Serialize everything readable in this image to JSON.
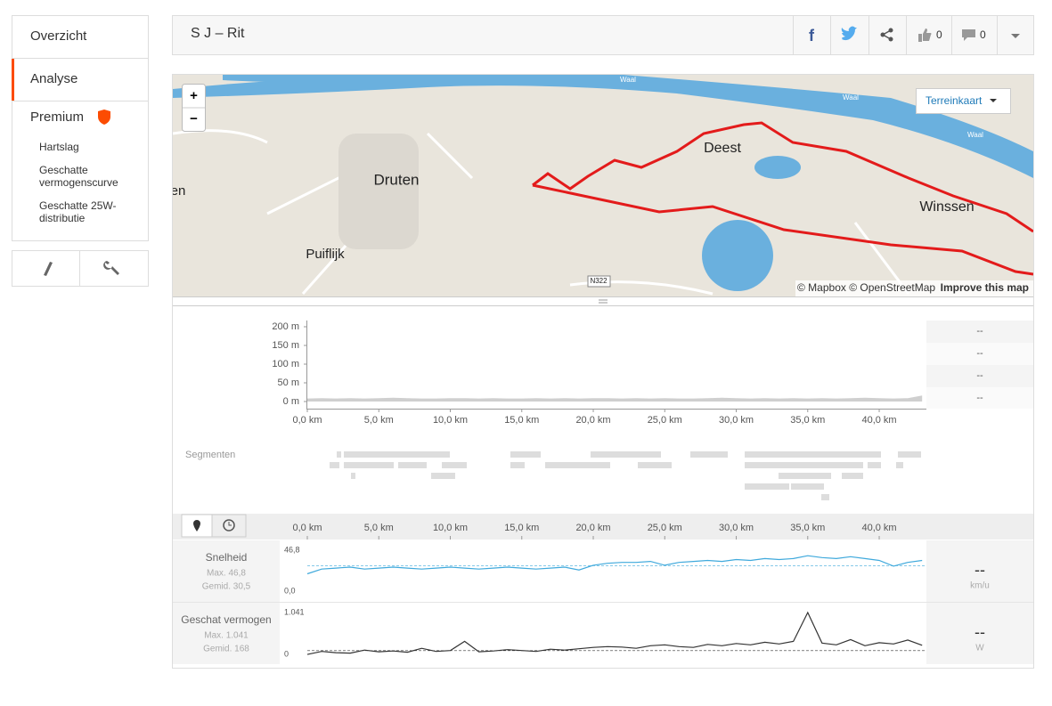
{
  "sidebar": {
    "nav": [
      "Overzicht",
      "Analyse",
      "Premium"
    ],
    "premium_items": [
      [
        "Hartslag"
      ],
      [
        "Geschatte",
        "vermogenscurve"
      ],
      [
        "Geschatte 25W-",
        "distributie"
      ]
    ]
  },
  "header": {
    "title": "S J – Rit",
    "kudos": 0,
    "comments": 0
  },
  "map": {
    "style_button": "Terreinkaart",
    "zoom_in": "+",
    "zoom_out": "−",
    "labels": [
      "Druten",
      "Deest",
      "Winssen",
      "Puiflijk",
      "en",
      "N322",
      "Waal",
      "Waal",
      "Waal"
    ],
    "attribution": [
      "© Mapbox © OpenStreetMap",
      "Improve this map"
    ]
  },
  "distance_axis": {
    "xlim": [
      0,
      43.3
    ],
    "xticks": [
      {
        "value": 0,
        "label": "0,0 km"
      },
      {
        "value": 5,
        "label": "5,0 km"
      },
      {
        "value": 10,
        "label": "10,0 km"
      },
      {
        "value": 15,
        "label": "15,0 km"
      },
      {
        "value": 20,
        "label": "20,0 km"
      },
      {
        "value": 25,
        "label": "25,0 km"
      },
      {
        "value": 30,
        "label": "30,0 km"
      },
      {
        "value": 35,
        "label": "35,0 km"
      },
      {
        "value": 40,
        "label": "40,0 km"
      }
    ]
  },
  "elevation": {
    "type": "area",
    "color": "#cfcfcf",
    "ylim": [
      0,
      200
    ],
    "yticks": [
      {
        "value": 0,
        "label": "0 m"
      },
      {
        "value": 50,
        "label": "50 m"
      },
      {
        "value": 100,
        "label": "100 m"
      },
      {
        "value": 150,
        "label": "150 m"
      },
      {
        "value": 200,
        "label": "200 m"
      }
    ],
    "x": [
      0,
      1,
      2,
      3,
      4,
      5,
      6,
      7,
      8,
      9,
      10,
      11,
      12,
      13,
      14,
      15,
      16,
      17,
      18,
      19,
      20,
      21,
      22,
      23,
      24,
      25,
      26,
      27,
      28,
      29,
      30,
      31,
      32,
      33,
      34,
      35,
      36,
      37,
      38,
      39,
      40,
      41,
      42,
      43
    ],
    "values": [
      8,
      9,
      8,
      9,
      8,
      9,
      10,
      9,
      8,
      8,
      9,
      9,
      8,
      9,
      8,
      8,
      9,
      8,
      9,
      8,
      9,
      9,
      8,
      9,
      8,
      9,
      8,
      8,
      9,
      10,
      9,
      8,
      9,
      8,
      9,
      8,
      9,
      8,
      9,
      10,
      9,
      8,
      9,
      16
    ],
    "stats": [
      "--",
      "--",
      "--",
      "--"
    ]
  },
  "segments_label": "Segmenten",
  "speed": {
    "type": "line",
    "label": "Snelheid",
    "max_text": "Max. 46,8",
    "avg_text": "Gemid. 30,5",
    "avg": 30.5,
    "color": "#3fa9dc",
    "ylim": [
      0,
      46.8
    ],
    "yticks": [
      {
        "value": 0,
        "label": "0,0"
      },
      {
        "value": 46.8,
        "label": "46,8"
      }
    ],
    "x": [
      0,
      1,
      2,
      3,
      4,
      5,
      6,
      7,
      8,
      9,
      10,
      11,
      12,
      13,
      14,
      15,
      16,
      17,
      18,
      19,
      20,
      21,
      22,
      23,
      24,
      25,
      26,
      27,
      28,
      29,
      30,
      31,
      32,
      33,
      34,
      35,
      36,
      37,
      38,
      39,
      40,
      41,
      42,
      43
    ],
    "values": [
      22,
      27,
      28,
      29,
      27,
      28,
      29,
      28,
      27,
      28,
      29,
      28,
      27,
      28,
      29,
      28,
      27,
      28,
      29,
      26,
      31,
      33,
      34,
      34,
      35,
      31,
      34,
      35,
      36,
      35,
      37,
      36,
      38,
      37,
      38,
      41,
      39,
      38,
      40,
      38,
      36,
      30,
      34,
      36
    ],
    "stat": "--",
    "unit": "km/u"
  },
  "power": {
    "type": "line",
    "label": "Geschat vermogen",
    "max_text": "Max. 1.041",
    "avg_text": "Gemid. 168",
    "avg": 168,
    "color": "#333333",
    "ylim": [
      0,
      1041
    ],
    "yticks": [
      {
        "value": 0,
        "label": "0"
      },
      {
        "value": 1041,
        "label": "1.041"
      }
    ],
    "x": [
      0,
      1,
      2,
      3,
      4,
      5,
      6,
      7,
      8,
      9,
      10,
      11,
      12,
      13,
      14,
      15,
      16,
      17,
      18,
      19,
      20,
      21,
      22,
      23,
      24,
      25,
      26,
      27,
      28,
      29,
      30,
      31,
      32,
      33,
      34,
      35,
      36,
      37,
      38,
      39,
      40,
      41,
      42,
      43
    ],
    "values": [
      80,
      150,
      120,
      110,
      180,
      140,
      160,
      130,
      220,
      150,
      170,
      380,
      140,
      160,
      190,
      170,
      150,
      200,
      180,
      210,
      240,
      260,
      250,
      220,
      280,
      300,
      260,
      240,
      310,
      280,
      330,
      300,
      360,
      320,
      380,
      1041,
      340,
      300,
      420,
      280,
      350,
      320,
      410,
      290
    ],
    "stat": "--",
    "unit": "W"
  }
}
